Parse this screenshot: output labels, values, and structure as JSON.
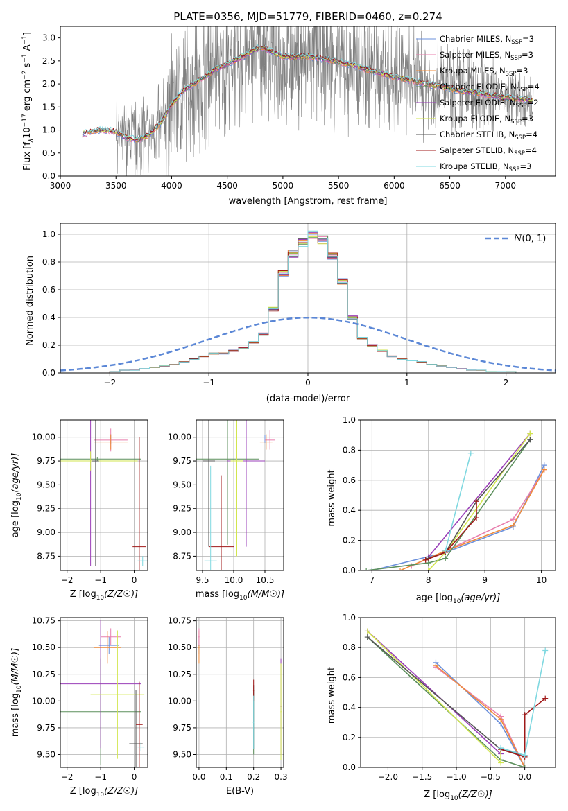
{
  "figure": {
    "title": "PLATE=0356, MJD=51779, FIBERID=0460, z=0.274"
  },
  "models": [
    {
      "name": "Chabrier MILES, N$_{SSP}$=3",
      "label_main": "Chabrier MILES, N",
      "label_sub": "SSP",
      "label_end": "=3",
      "color": "#6a8fdb"
    },
    {
      "name": "Salpeter MILES, N$_{SSP}$=3",
      "label_main": "Salpeter MILES, N",
      "label_sub": "SSP",
      "label_end": "=3",
      "color": "#e87fae"
    },
    {
      "name": "Kroupa MILES, N$_{SSP}$=3",
      "label_main": "Kroupa MILES, N",
      "label_sub": "SSP",
      "label_end": "=3",
      "color": "#f08b3a"
    },
    {
      "name": "Chabrier ELODIE, N$_{SSP}$=4",
      "label_main": "Chabrier ELODIE, N",
      "label_sub": "SSP",
      "label_end": "=4",
      "color": "#5c8f5c"
    },
    {
      "name": "Salpeter ELODIE, N$_{SSP}$=2",
      "label_main": "Salpeter ELODIE, N",
      "label_sub": "SSP",
      "label_end": "=2",
      "color": "#9a3fb8"
    },
    {
      "name": "Kroupa ELODIE, N$_{SSP}$=3",
      "label_main": "Kroupa ELODIE, N",
      "label_sub": "SSP",
      "label_end": "=3",
      "color": "#d2e64e"
    },
    {
      "name": "Chabrier STELIB, N$_{SSP}$=4",
      "label_main": "Chabrier STELIB, N",
      "label_sub": "SSP",
      "label_end": "=4",
      "color": "#555555"
    },
    {
      "name": "Salpeter STELIB, N$_{SSP}$=4",
      "label_main": "Salpeter STELIB, N",
      "label_sub": "SSP",
      "label_end": "=4",
      "color": "#a01818"
    },
    {
      "name": "Kroupa STELIB, N$_{SSP}$=3",
      "label_main": "Kroupa STELIB, N",
      "label_sub": "SSP",
      "label_end": "=3",
      "color": "#7fd8e0"
    }
  ],
  "chart_data": [
    {
      "id": "spectrum",
      "type": "line",
      "title": "PLATE=0356, MJD=51779, FIBERID=0460, z=0.274",
      "xlabel": "wavelength [Angstrom, rest frame]",
      "ylabel_main": "Flux [f",
      "ylabel_rest": "10",
      "ylabel_tail": " erg cm",
      "xlim": [
        3000,
        7450
      ],
      "ylim": [
        0,
        3.25
      ],
      "xticks": [
        3000,
        3500,
        4000,
        4500,
        5000,
        5500,
        6000,
        6500,
        7000
      ],
      "yticks": [
        0.0,
        0.5,
        1.0,
        1.5,
        2.0,
        2.5,
        3.0
      ],
      "data_color": "#808080",
      "data_range": [
        3200,
        7250
      ],
      "continuum": {
        "x": [
          3200,
          3300,
          3400,
          3500,
          3600,
          3700,
          3800,
          3900,
          4000,
          4100,
          4200,
          4300,
          4400,
          4500,
          4600,
          4700,
          4800,
          4900,
          5000,
          5100,
          5200,
          5300,
          5400,
          5500,
          5600,
          5700,
          5800,
          5900,
          6000,
          6100,
          6200,
          6300,
          6400,
          6500,
          6600,
          6700,
          6800,
          6900,
          7000,
          7100,
          7200,
          7250
        ],
        "y": [
          0.92,
          0.98,
          1.0,
          0.96,
          0.82,
          0.78,
          0.9,
          1.15,
          1.55,
          1.85,
          2.0,
          2.15,
          2.32,
          2.42,
          2.55,
          2.68,
          2.8,
          2.7,
          2.6,
          2.58,
          2.6,
          2.58,
          2.52,
          2.48,
          2.42,
          2.35,
          2.28,
          2.22,
          2.15,
          2.1,
          2.05,
          2.0,
          1.95,
          1.9,
          1.85,
          1.82,
          1.78,
          1.74,
          1.7,
          1.68,
          1.66,
          1.62
        ]
      }
    },
    {
      "id": "residuals",
      "type": "line",
      "xlabel": "(data-model)/error",
      "ylabel": "Normed distribution",
      "xlim": [
        -2.5,
        2.5
      ],
      "ylim": [
        0,
        1.08
      ],
      "xticks": [
        -2,
        -1,
        0,
        1,
        2
      ],
      "yticks": [
        0.0,
        0.2,
        0.4,
        0.6,
        0.8,
        1.0
      ],
      "legend": "$\\mathcal{N}(0,1)$",
      "legend_text": "(0, 1)",
      "legend_color": "#5b87d6",
      "bin_width": 0.1,
      "bin_start": -2.5,
      "hist": [
        0.0,
        0.0,
        0.0,
        0.0,
        0.0,
        0.01,
        0.02,
        0.02,
        0.03,
        0.04,
        0.05,
        0.06,
        0.08,
        0.1,
        0.12,
        0.14,
        0.14,
        0.16,
        0.18,
        0.22,
        0.28,
        0.46,
        0.72,
        0.86,
        0.94,
        1.0,
        0.96,
        0.84,
        0.66,
        0.4,
        0.25,
        0.2,
        0.16,
        0.12,
        0.1,
        0.09,
        0.08,
        0.06,
        0.05,
        0.04,
        0.03,
        0.02,
        0.02,
        0.01,
        0.01,
        0.01,
        0.0,
        0.0,
        0.0,
        0.0
      ]
    },
    {
      "id": "age-vs-Z",
      "type": "scatter",
      "xlabel_main": "Z [log",
      "ylabel_main": "age  [log",
      "xlim": [
        -2.2,
        0.4
      ],
      "ylim": [
        8.6,
        10.18
      ],
      "xticks": [
        -2,
        -1,
        0
      ],
      "yticks": [
        8.75,
        9.0,
        9.25,
        9.5,
        9.75,
        10.0
      ],
      "points": [
        {
          "model": 0,
          "x": -0.7,
          "y": 9.98,
          "xerr": 0.3,
          "yerr": 0.05
        },
        {
          "model": 1,
          "x": -0.7,
          "y": 9.97,
          "xerr": 0.5,
          "yerr": 0.12
        },
        {
          "model": 2,
          "x": -0.7,
          "y": 9.95,
          "xerr": 0.5,
          "yerr": 0.08
        },
        {
          "model": 3,
          "x": -1.1,
          "y": 9.77,
          "xerr": 1.3,
          "yerr": 0.02
        },
        {
          "model": 4,
          "x": -1.3,
          "y": 9.75,
          "xerr": 0.8,
          "yerr": 1.1
        },
        {
          "model": 5,
          "x": -1.3,
          "y": 9.75,
          "xerr": 1.4,
          "yerr": 0.1
        },
        {
          "model": 6,
          "x": -1.15,
          "y": 9.75,
          "xerr": 0.1,
          "yerr": 1.1
        },
        {
          "model": 7,
          "x": 0.15,
          "y": 8.85,
          "xerr": 0.2,
          "yerr": 1.15
        },
        {
          "model": 8,
          "x": 0.25,
          "y": 8.7,
          "xerr": 0.15,
          "yerr": 0.05
        }
      ]
    },
    {
      "id": "age-vs-mass",
      "type": "scatter",
      "xlabel_main": "mass [log",
      "xlim": [
        9.4,
        10.8
      ],
      "ylim": [
        8.6,
        10.18
      ],
      "xticks": [
        9.5,
        10.0,
        10.5
      ],
      "yticks": [
        8.75,
        9.0,
        9.25,
        9.5,
        9.75,
        10.0
      ],
      "points": [
        {
          "model": 0,
          "x": 10.5,
          "y": 9.98,
          "xerr": 0.1,
          "yerr": 0.04
        },
        {
          "model": 1,
          "x": 10.58,
          "y": 9.97,
          "xerr": 0.08,
          "yerr": 0.1
        },
        {
          "model": 2,
          "x": 10.52,
          "y": 9.95,
          "xerr": 0.1,
          "yerr": 0.08
        },
        {
          "model": 3,
          "x": 9.9,
          "y": 9.77,
          "xerr": 0.5,
          "yerr": 0.9
        },
        {
          "model": 4,
          "x": 10.2,
          "y": 9.75,
          "xerr": 0.3,
          "yerr": 0.9
        },
        {
          "model": 5,
          "x": 10.05,
          "y": 9.75,
          "xerr": 0.1,
          "yerr": 1.0
        },
        {
          "model": 6,
          "x": 9.6,
          "y": 9.75,
          "xerr": 0.1,
          "yerr": 0.9
        },
        {
          "model": 7,
          "x": 9.8,
          "y": 8.85,
          "xerr": 0.2,
          "yerr": 0.75
        },
        {
          "model": 8,
          "x": 9.63,
          "y": 8.7,
          "xerr": 0.1,
          "yerr": 1.0
        }
      ]
    },
    {
      "id": "weight-vs-age",
      "type": "line",
      "xlabel_main": "age  [log",
      "ylabel": "mass weight",
      "xlim": [
        6.8,
        10.25
      ],
      "ylim": [
        0,
        1.0
      ],
      "xticks": [
        7,
        8,
        9,
        10
      ],
      "yticks": [
        0.0,
        0.2,
        0.4,
        0.6,
        0.8,
        1.0
      ],
      "series": [
        {
          "model": 0,
          "x": [
            7.0,
            8.3,
            9.5,
            10.05
          ],
          "y": [
            0.0,
            0.12,
            0.29,
            0.7
          ]
        },
        {
          "model": 1,
          "x": [
            7.7,
            8.3,
            9.5,
            10.05
          ],
          "y": [
            0.03,
            0.13,
            0.34,
            0.67
          ]
        },
        {
          "model": 2,
          "x": [
            7.5,
            8.3,
            9.5,
            10.05
          ],
          "y": [
            0.0,
            0.13,
            0.3,
            0.67
          ]
        },
        {
          "model": 3,
          "x": [
            6.9,
            8.0,
            8.3,
            9.8
          ],
          "y": [
            0.0,
            0.05,
            0.08,
            0.87
          ]
        },
        {
          "model": 4,
          "x": [
            8.0,
            9.8
          ],
          "y": [
            0.09,
            0.91
          ]
        },
        {
          "model": 5,
          "x": [
            8.0,
            8.3,
            9.8
          ],
          "y": [
            0.0,
            0.12,
            0.91
          ]
        },
        {
          "model": 6,
          "x": [
            8.0,
            8.3,
            8.85,
            9.8
          ],
          "y": [
            0.08,
            0.12,
            0.46,
            0.87
          ]
        },
        {
          "model": 7,
          "x": [
            7.95,
            8.3,
            8.85,
            8.85
          ],
          "y": [
            0.07,
            0.12,
            0.35,
            0.46
          ]
        },
        {
          "model": 8,
          "x": [
            8.3,
            8.75
          ],
          "y": [
            0.13,
            0.78
          ]
        }
      ]
    },
    {
      "id": "mass-vs-Z",
      "type": "scatter",
      "xlabel_main": "Z [log",
      "ylabel_main": "mass [log",
      "xlim": [
        -2.2,
        0.4
      ],
      "ylim": [
        9.38,
        10.78
      ],
      "xticks": [
        -2,
        -1,
        0
      ],
      "yticks": [
        9.5,
        9.75,
        10.0,
        10.25,
        10.5,
        10.75
      ],
      "points": [
        {
          "model": 0,
          "x": -0.75,
          "y": 10.52,
          "xerr": 0.3,
          "yerr": 0.08
        },
        {
          "model": 1,
          "x": -0.7,
          "y": 10.6,
          "xerr": 0.3,
          "yerr": 0.08
        },
        {
          "model": 2,
          "x": -0.8,
          "y": 10.5,
          "xerr": 0.4,
          "yerr": 0.15
        },
        {
          "model": 3,
          "x": -1.0,
          "y": 9.9,
          "xerr": 1.2,
          "yerr": 0.5
        },
        {
          "model": 4,
          "x": -1.0,
          "y": 10.16,
          "xerr": 1.2,
          "yerr": 0.6
        },
        {
          "model": 5,
          "x": -0.5,
          "y": 10.06,
          "xerr": 0.8,
          "yerr": 0.6
        },
        {
          "model": 6,
          "x": 0.05,
          "y": 9.6,
          "xerr": 0.2,
          "yerr": 0.5
        },
        {
          "model": 7,
          "x": 0.15,
          "y": 9.78,
          "xerr": 0.1,
          "yerr": 0.4
        },
        {
          "model": 8,
          "x": 0.2,
          "y": 9.57,
          "xerr": 0.1,
          "yerr": 0.04
        }
      ]
    },
    {
      "id": "mass-vs-ebv",
      "type": "scatter",
      "xlabel": "E(B-V)",
      "xlim": [
        -0.01,
        0.31
      ],
      "ylim": [
        9.38,
        10.78
      ],
      "xticks": [
        0.0,
        0.1,
        0.2,
        0.3
      ],
      "yticks": [
        9.5,
        9.75,
        10.0,
        10.25,
        10.5,
        10.75
      ],
      "points": [
        {
          "model": 0,
          "x": 0.0,
          "y": 10.52,
          "xerr": 0.002,
          "yerr": 0.08
        },
        {
          "model": 2,
          "x": 0.0,
          "y": 10.5,
          "xerr": 0.002,
          "yerr": 0.15
        },
        {
          "model": 1,
          "x": 0.0,
          "y": 10.6,
          "xerr": 0.002,
          "yerr": 0.08
        },
        {
          "model": 3,
          "x": 0.2,
          "y": 9.8,
          "xerr": 0.002,
          "yerr": 0.3
        },
        {
          "model": 6,
          "x": 0.2,
          "y": 9.85,
          "xerr": 0.002,
          "yerr": 0.3
        },
        {
          "model": 7,
          "x": 0.2,
          "y": 10.1,
          "xerr": 0.002,
          "yerr": 0.1
        },
        {
          "model": 8,
          "x": 0.2,
          "y": 9.8,
          "xerr": 0.002,
          "yerr": 0.25
        },
        {
          "model": 4,
          "x": 0.3,
          "y": 9.95,
          "xerr": 0.002,
          "yerr": 0.45
        },
        {
          "model": 5,
          "x": 0.3,
          "y": 9.9,
          "xerr": 0.002,
          "yerr": 0.45
        }
      ]
    },
    {
      "id": "weight-vs-Z",
      "type": "line",
      "xlabel_main": "Z [log",
      "ylabel": "mass weight",
      "xlim": [
        -2.4,
        0.45
      ],
      "ylim": [
        0,
        1.0
      ],
      "xticks": [
        -2.0,
        -1.5,
        -1.0,
        -0.5,
        0.0
      ],
      "yticks": [
        0.0,
        0.2,
        0.4,
        0.6,
        0.8,
        1.0
      ],
      "series": [
        {
          "model": 0,
          "x": [
            -1.3,
            -0.35,
            0.0
          ],
          "y": [
            0.7,
            0.29,
            0.0
          ]
        },
        {
          "model": 1,
          "x": [
            -1.3,
            -0.35,
            0.0
          ],
          "y": [
            0.67,
            0.34,
            0.0
          ]
        },
        {
          "model": 2,
          "x": [
            -1.3,
            -0.35,
            0.0
          ],
          "y": [
            0.68,
            0.32,
            0.0
          ]
        },
        {
          "model": 3,
          "x": [
            -2.3,
            -0.35,
            0.0
          ],
          "y": [
            0.87,
            0.05,
            0.0
          ]
        },
        {
          "model": 4,
          "x": [
            -2.3,
            -0.35
          ],
          "y": [
            0.91,
            0.09
          ]
        },
        {
          "model": 5,
          "x": [
            -2.3,
            -0.35,
            -0.35
          ],
          "y": [
            0.91,
            0.03,
            0.12
          ]
        },
        {
          "model": 6,
          "x": [
            -2.3,
            -0.35,
            0.0,
            0.0
          ],
          "y": [
            0.87,
            0.12,
            0.08,
            0.35
          ]
        },
        {
          "model": 7,
          "x": [
            -0.35,
            0.0,
            0.0,
            0.3
          ],
          "y": [
            0.12,
            0.07,
            0.35,
            0.46
          ]
        },
        {
          "model": 8,
          "x": [
            -0.35,
            0.0,
            0.3
          ],
          "y": [
            0.13,
            0.08,
            0.78
          ]
        }
      ]
    }
  ]
}
